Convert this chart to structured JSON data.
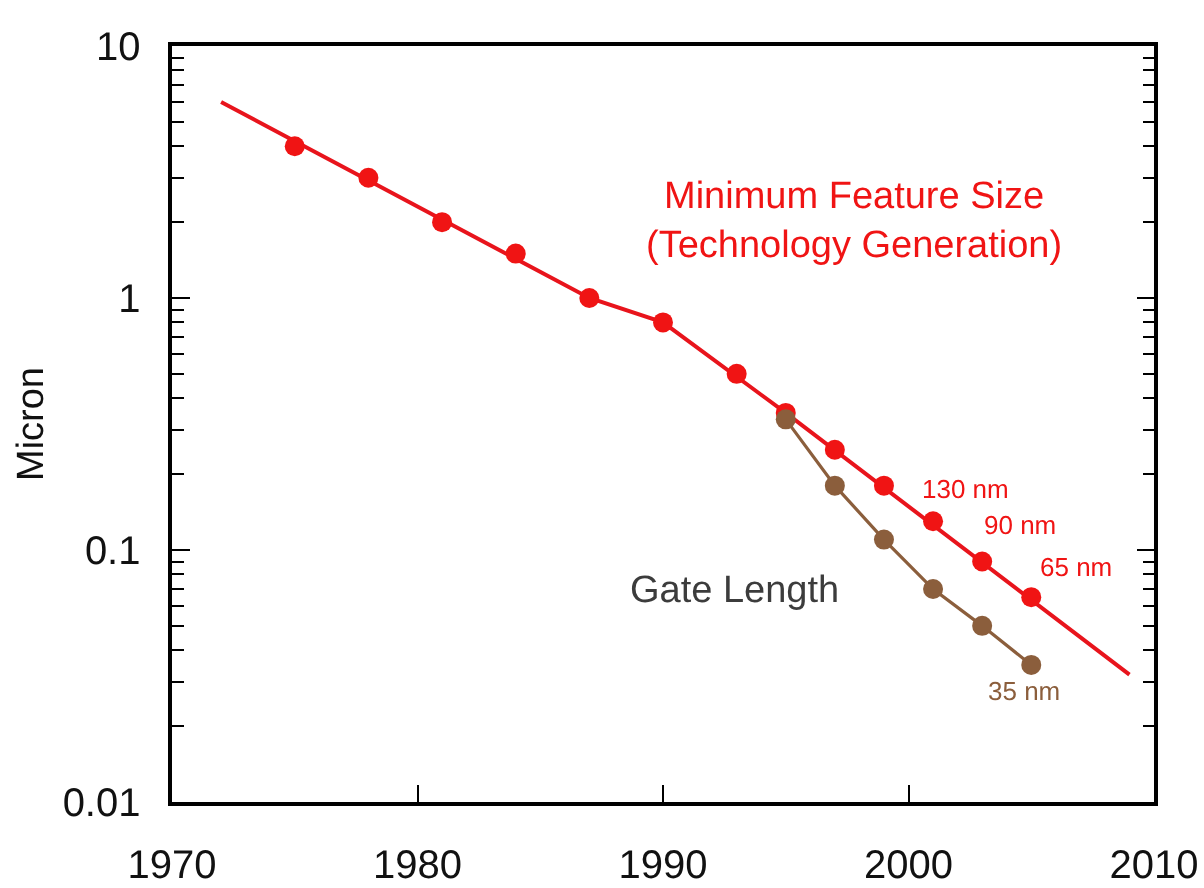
{
  "chart_data": {
    "type": "scatter",
    "ylabel": "Micron",
    "log": "y",
    "legend": false,
    "marker": "circle",
    "xlim": [
      1970,
      2010
    ],
    "xticks": [
      1970,
      1980,
      1990,
      2000,
      2010
    ],
    "ylim": [
      0.01,
      10
    ],
    "yticks": [
      0.01,
      {
        "value": 0.02,
        "label": null
      },
      {
        "value": 0.03,
        "label": null
      },
      {
        "value": 0.04,
        "label": null
      },
      {
        "value": 0.05,
        "label": null
      },
      {
        "value": 0.06,
        "label": null
      },
      {
        "value": 0.07,
        "label": null
      },
      {
        "value": 0.08,
        "label": null
      },
      {
        "value": 0.09,
        "label": null
      },
      0.1,
      {
        "value": 0.2,
        "label": null
      },
      {
        "value": 0.3,
        "label": null
      },
      {
        "value": 0.4,
        "label": null
      },
      {
        "value": 0.5,
        "label": null
      },
      {
        "value": 0.6,
        "label": null
      },
      {
        "value": 0.7,
        "label": null
      },
      {
        "value": 0.8,
        "label": null
      },
      {
        "value": 0.9,
        "label": null
      },
      1,
      {
        "value": 2,
        "label": null
      },
      {
        "value": 3,
        "label": null
      },
      {
        "value": 4,
        "label": null
      },
      {
        "value": 5,
        "label": null
      },
      {
        "value": 6,
        "label": null
      },
      {
        "value": 7,
        "label": null
      },
      {
        "value": 8,
        "label": null
      },
      {
        "value": 9,
        "label": null
      },
      10
    ],
    "series": [
      {
        "type": "line",
        "marker": "none",
        "color": "#e8141c",
        "x": [
          1972,
          1987,
          1990,
          1995,
          2009
        ],
        "values": [
          6,
          1,
          0.8,
          0.35,
          0.032
        ]
      },
      {
        "name": "Minimum Feature Size\n(Technology Generation)",
        "color": "#f01414",
        "x": [
          1975,
          1978,
          1981,
          1984,
          1987,
          1990,
          1993,
          1995,
          1997,
          1999,
          2001,
          2003,
          2005
        ],
        "values": [
          4,
          3,
          2,
          1.5,
          1,
          0.8,
          0.5,
          0.35,
          0.25,
          0.18,
          0.13,
          0.09,
          0.065
        ]
      },
      {
        "type": "line",
        "name": "Gate Length",
        "color": "#8b5e3c",
        "x": [
          1995,
          1997,
          1999,
          2001,
          2003,
          2005
        ],
        "values": [
          0.33,
          0.18,
          0.11,
          0.07,
          0.05,
          0.035
        ]
      }
    ],
    "annotations": [
      {
        "text": "130 nm",
        "x": 2001,
        "y": 0.13
      },
      {
        "text": "90 nm",
        "x": 2003,
        "y": 0.09
      },
      {
        "text": "65 nm",
        "x": 2005,
        "y": 0.065
      },
      {
        "text": "35 nm",
        "x": 2005,
        "y": 0.035
      }
    ]
  }
}
